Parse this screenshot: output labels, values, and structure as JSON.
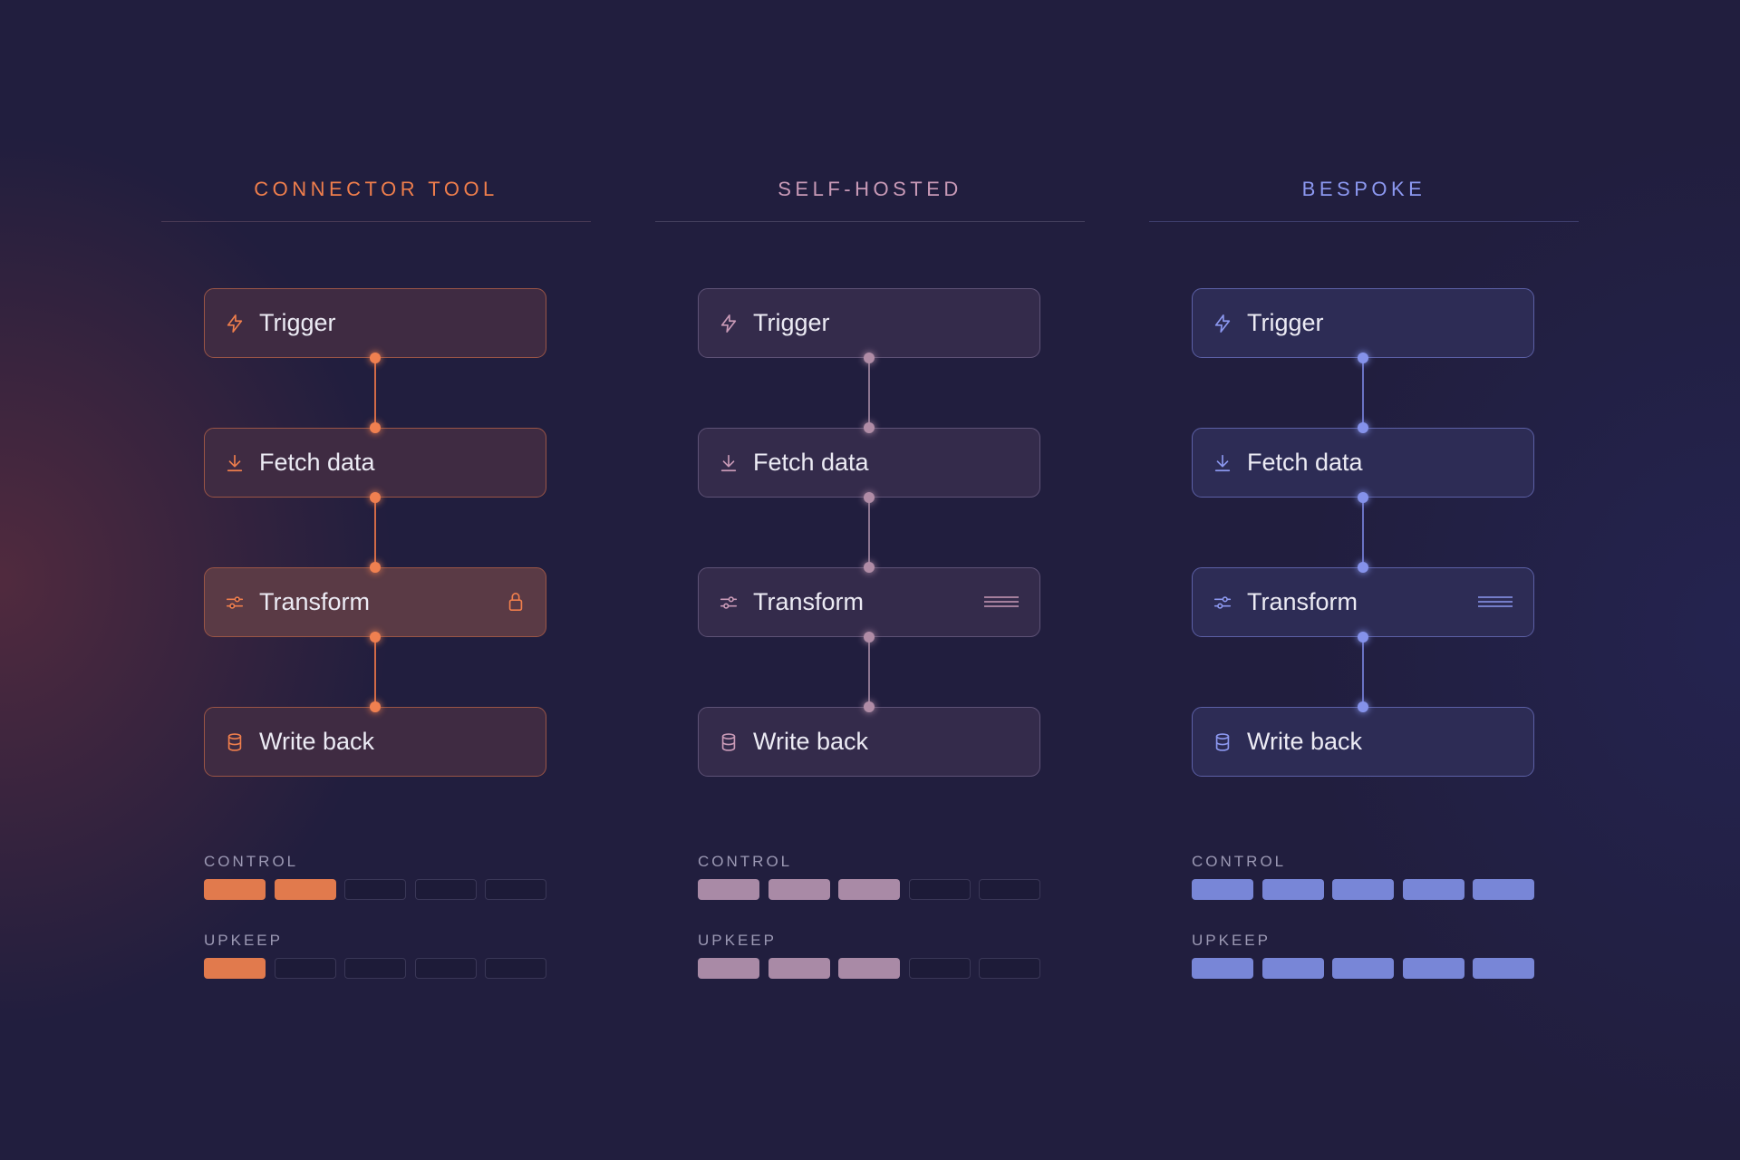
{
  "columns": [
    {
      "title": "CONNECTOR TOOL",
      "accent": "#ef7e4c",
      "rule_color": "#4a3a55",
      "node_bg": "#3f2b42",
      "node_bg_highlight": "#5a3a45",
      "node_border": "#9a5546",
      "line_color": "#d06a47",
      "dot_color": "#f08050",
      "fill_color": "#e17a4d",
      "nodes": [
        {
          "label": "Trigger",
          "icon": "lightning-icon"
        },
        {
          "label": "Fetch data",
          "icon": "download-icon"
        },
        {
          "label": "Transform",
          "icon": "sliders-icon",
          "right_icon": "lock-icon",
          "highlight": true
        },
        {
          "label": "Write back",
          "icon": "database-icon"
        }
      ],
      "control": {
        "label": "CONTROL",
        "level": 2,
        "max": 5
      },
      "upkeep": {
        "label": "UPKEEP",
        "level": 1,
        "max": 5
      }
    },
    {
      "title": "SELF-HOSTED",
      "accent": "#c99ab7",
      "rule_color": "#44405e",
      "node_bg": "#342b4b",
      "node_bg_highlight": "#342b4b",
      "node_border": "#5e5276",
      "line_color": "#8c7590",
      "dot_color": "#b08ca6",
      "fill_color": "#a98aa6",
      "nodes": [
        {
          "label": "Trigger",
          "icon": "lightning-icon"
        },
        {
          "label": "Fetch data",
          "icon": "download-icon"
        },
        {
          "label": "Transform",
          "icon": "sliders-icon",
          "right_icon": "menu-lines-icon"
        },
        {
          "label": "Write back",
          "icon": "database-icon"
        }
      ],
      "control": {
        "label": "CONTROL",
        "level": 3,
        "max": 5
      },
      "upkeep": {
        "label": "UPKEEP",
        "level": 3,
        "max": 5
      }
    },
    {
      "title": "BESPOKE",
      "accent": "#8c98f0",
      "rule_color": "#3f3f6e",
      "node_bg": "#2d2c55",
      "node_bg_highlight": "#2d2c55",
      "node_border": "#5c60a6",
      "line_color": "#6a72c4",
      "dot_color": "#8592ea",
      "fill_color": "#7886d7",
      "nodes": [
        {
          "label": "Trigger",
          "icon": "lightning-icon"
        },
        {
          "label": "Fetch data",
          "icon": "download-icon"
        },
        {
          "label": "Transform",
          "icon": "sliders-icon",
          "right_icon": "menu-lines-icon"
        },
        {
          "label": "Write back",
          "icon": "database-icon"
        }
      ],
      "control": {
        "label": "CONTROL",
        "level": 5,
        "max": 5
      },
      "upkeep": {
        "label": "UPKEEP",
        "level": 5,
        "max": 5
      }
    }
  ]
}
